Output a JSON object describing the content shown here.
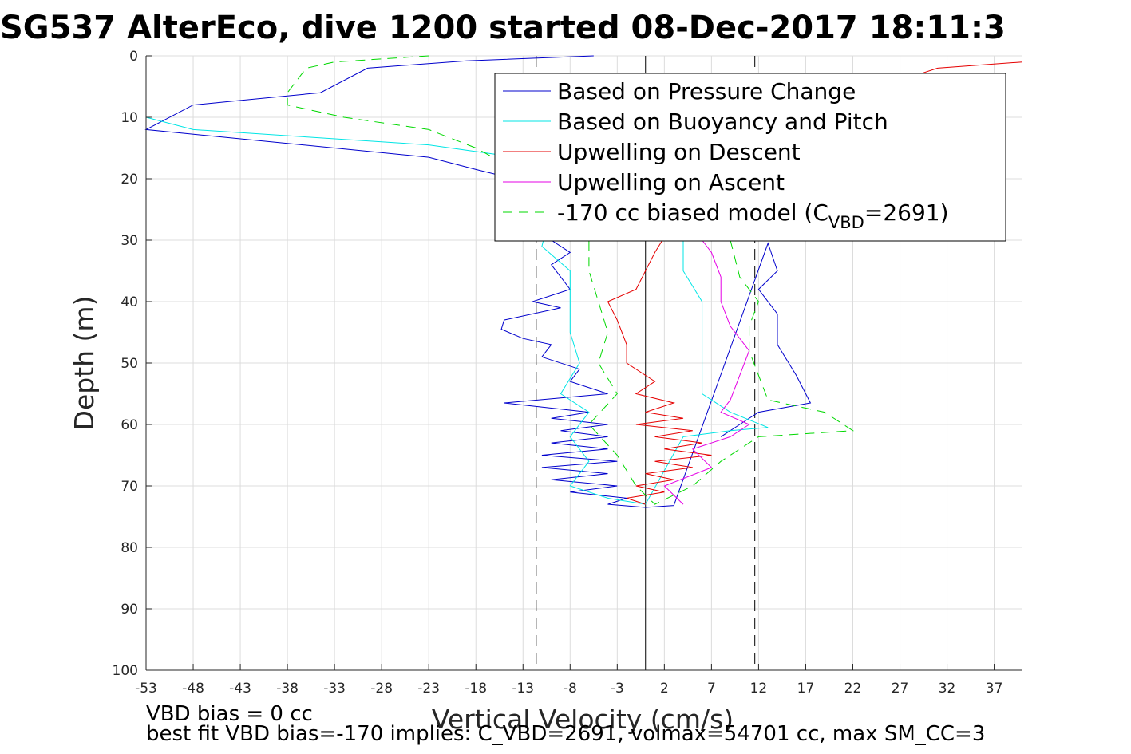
{
  "chart_data": {
    "type": "line",
    "title": "SG537 AlterEco, dive 1200 started 08-Dec-2017 18:11:3",
    "xlabel": "Vertical Velocity (cm/s)",
    "ylabel": "Depth (m)",
    "xlim": [
      -53,
      40
    ],
    "ylim": [
      0,
      100
    ],
    "y_reversed": true,
    "grid": true,
    "legend_placement": "top-right",
    "x_ticks": [
      "-53",
      "-48",
      "-43",
      "-38",
      "-33",
      "-28",
      "-23",
      "-18",
      "-13",
      "-8",
      "-3",
      "2",
      "7",
      "12",
      "17",
      "22",
      "27",
      "32",
      "37"
    ],
    "y_ticks": [
      "0",
      "10",
      "20",
      "30",
      "40",
      "50",
      "60",
      "70",
      "80",
      "90",
      "100"
    ],
    "x_tick_values": [
      -53,
      -48,
      -43,
      -38,
      -33,
      -28,
      -23,
      -18,
      -13,
      -8,
      -3,
      2,
      7,
      12,
      17,
      22,
      27,
      32,
      37
    ],
    "y_tick_values": [
      0,
      10,
      20,
      30,
      40,
      50,
      60,
      70,
      80,
      90,
      100
    ],
    "reference_lines": [
      {
        "x": -11.6,
        "style": "dashed",
        "color": "#000000"
      },
      {
        "x": 0,
        "style": "solid",
        "color": "#000000"
      },
      {
        "x": 11.6,
        "style": "dashed",
        "color": "#000000"
      }
    ],
    "series": [
      {
        "name": "Based on Pressure Change",
        "color": "#0000cc",
        "style": "solid",
        "points": [
          [
            -5.5,
            0
          ],
          [
            -19,
            0.8
          ],
          [
            -29.5,
            2
          ],
          [
            -34.5,
            6
          ],
          [
            -48,
            8
          ],
          [
            -53,
            12
          ],
          [
            -23,
            16.5
          ],
          [
            -18,
            18.5
          ],
          [
            -14,
            20
          ],
          [
            -11,
            22
          ],
          [
            -8,
            25
          ],
          [
            -10,
            30
          ],
          [
            -8,
            32
          ],
          [
            -10,
            34
          ],
          [
            -9,
            36
          ],
          [
            -8,
            38
          ],
          [
            -12,
            40
          ],
          [
            -9,
            41
          ],
          [
            -15,
            43
          ],
          [
            -15.3,
            44.5
          ],
          [
            -13,
            46
          ],
          [
            -10,
            47
          ],
          [
            -11,
            49
          ],
          [
            -7,
            51
          ],
          [
            -8,
            53
          ],
          [
            -4,
            55
          ],
          [
            -15,
            56.5
          ],
          [
            -6,
            58
          ],
          [
            -10,
            59
          ],
          [
            -4,
            60
          ],
          [
            -9,
            61
          ],
          [
            -4,
            62
          ],
          [
            -10,
            63
          ],
          [
            -4,
            64
          ],
          [
            -11,
            65
          ],
          [
            -3,
            66
          ],
          [
            -11,
            67
          ],
          [
            -4,
            68
          ],
          [
            -10,
            69
          ],
          [
            -3,
            70
          ],
          [
            -8,
            71
          ],
          [
            -2,
            72
          ],
          [
            -4,
            73
          ],
          [
            0,
            73.5
          ],
          [
            3,
            73.2
          ],
          [
            13,
            30.5
          ],
          [
            14,
            35
          ],
          [
            12,
            38
          ],
          [
            14,
            42
          ],
          [
            14,
            47
          ],
          [
            16,
            52
          ],
          [
            17.5,
            56.5
          ],
          [
            12,
            58
          ],
          [
            10,
            60
          ],
          [
            8,
            62
          ]
        ]
      },
      {
        "name": "Based on Buoyancy and Pitch",
        "color": "#00e5e5",
        "style": "solid",
        "points": [
          [
            -53,
            0
          ],
          [
            -53,
            10
          ],
          [
            -48,
            12
          ],
          [
            -23,
            14.5
          ],
          [
            -16,
            16
          ],
          [
            -12,
            20
          ],
          [
            -10,
            25
          ],
          [
            -11,
            31
          ],
          [
            -8,
            35
          ],
          [
            -8,
            40
          ],
          [
            -8,
            45
          ],
          [
            -7,
            50
          ],
          [
            -9,
            55
          ],
          [
            -6,
            58
          ],
          [
            -8,
            62
          ],
          [
            -6,
            66
          ],
          [
            -8,
            70
          ],
          [
            -4,
            72
          ],
          [
            0,
            73
          ],
          [
            4,
            62
          ],
          [
            9,
            61
          ],
          [
            13,
            60.5
          ],
          [
            9,
            58
          ],
          [
            6,
            55
          ],
          [
            6,
            50
          ],
          [
            6,
            45
          ],
          [
            6,
            40
          ],
          [
            4,
            35
          ],
          [
            4,
            30
          ]
        ]
      },
      {
        "name": "Upwelling on Descent",
        "color": "#e50000",
        "style": "solid",
        "points": [
          [
            40,
            1
          ],
          [
            31,
            2
          ],
          [
            25,
            5
          ],
          [
            10,
            15
          ],
          [
            6,
            22
          ],
          [
            3,
            27
          ],
          [
            1,
            32
          ],
          [
            0,
            35
          ],
          [
            -1,
            38
          ],
          [
            -4,
            40
          ],
          [
            -3,
            43
          ],
          [
            -2,
            47
          ],
          [
            -2,
            50
          ],
          [
            1,
            53
          ],
          [
            -1,
            55
          ],
          [
            3,
            56.5
          ],
          [
            0,
            58
          ],
          [
            4,
            59
          ],
          [
            -1,
            60
          ],
          [
            5,
            61
          ],
          [
            1,
            62
          ],
          [
            6,
            63
          ],
          [
            2,
            64
          ],
          [
            7,
            65
          ],
          [
            1,
            66
          ],
          [
            5,
            67
          ],
          [
            0,
            68
          ],
          [
            3,
            69
          ],
          [
            -1,
            70
          ],
          [
            2,
            71
          ],
          [
            -2,
            72
          ],
          [
            0,
            73
          ]
        ]
      },
      {
        "name": "Upwelling on Ascent",
        "color": "#e500e5",
        "style": "solid",
        "points": [
          [
            4,
            73
          ],
          [
            2,
            70
          ],
          [
            7,
            67
          ],
          [
            5,
            64
          ],
          [
            9,
            62
          ],
          [
            11,
            60
          ],
          [
            8,
            58
          ],
          [
            9,
            56
          ],
          [
            10,
            52
          ],
          [
            11,
            48
          ],
          [
            9,
            44
          ],
          [
            8,
            40
          ],
          [
            8,
            36
          ],
          [
            7,
            32
          ],
          [
            6,
            30
          ]
        ]
      },
      {
        "name": "-170 cc biased model (C_VBD=2691)",
        "color": "#00d800",
        "style": "dashed",
        "points": [
          [
            -23,
            0
          ],
          [
            -33,
            1
          ],
          [
            -36,
            2
          ],
          [
            -38,
            6
          ],
          [
            -38,
            8
          ],
          [
            -32,
            10
          ],
          [
            -23,
            12
          ],
          [
            -18,
            15
          ],
          [
            -12,
            20
          ],
          [
            -8,
            25
          ],
          [
            -6,
            30
          ],
          [
            -6,
            35
          ],
          [
            -5,
            40
          ],
          [
            -4,
            45
          ],
          [
            -5,
            50
          ],
          [
            -3,
            55
          ],
          [
            -6,
            60
          ],
          [
            -3,
            65
          ],
          [
            -1,
            70
          ],
          [
            1,
            73
          ],
          [
            5,
            70
          ],
          [
            8,
            66
          ],
          [
            12,
            62
          ],
          [
            22,
            61
          ],
          [
            19,
            58
          ],
          [
            13,
            56
          ],
          [
            12,
            52
          ],
          [
            11,
            48
          ],
          [
            11,
            44
          ],
          [
            12,
            40
          ],
          [
            10,
            36
          ],
          [
            9,
            30
          ]
        ]
      }
    ],
    "legend": {
      "entries": [
        "Based on Pressure Change",
        "Based on Buoyancy and Pitch",
        "Upwelling on Descent",
        "Upwelling on Ascent"
      ],
      "last_prefix": "-170 cc biased model (C",
      "last_sub": "VBD",
      "last_suffix": "=2691)"
    },
    "footnotes": [
      "VBD bias = 0 cc",
      "best fit VBD bias=-170 implies: C_VBD=2691, volmax=54701 cc, max SM_CC=3"
    ]
  }
}
